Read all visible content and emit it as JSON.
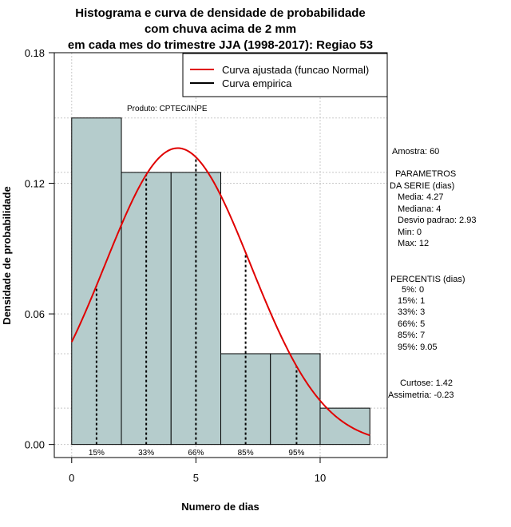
{
  "chart_data": {
    "type": "histogram",
    "title_lines": [
      "Histograma e curva de densidade de probabilidade",
      "com chuva acima de 2 mm",
      "em cada mes do trimestre JJA (1998-2017): Regiao 53"
    ],
    "xlabel": "Numero de dias",
    "ylabel": "Densidade de probabilidade",
    "xlim": [
      -0.7,
      12.7
    ],
    "ylim": [
      -0.006,
      0.18
    ],
    "x_ticks": [
      0,
      5,
      10
    ],
    "y_ticks": [
      "0.00",
      "0.06",
      "0.12",
      "0.18"
    ],
    "bins": [
      {
        "start": 0,
        "end": 2,
        "density": 0.15
      },
      {
        "start": 2,
        "end": 4,
        "density": 0.125
      },
      {
        "start": 4,
        "end": 6,
        "density": 0.125
      },
      {
        "start": 6,
        "end": 8,
        "density": 0.0417
      },
      {
        "start": 8,
        "end": 10,
        "density": 0.0417
      },
      {
        "start": 10,
        "end": 12,
        "density": 0.0167
      }
    ],
    "bar_color": "#b5cccc",
    "curve_color": "#e00000",
    "normal_fit": {
      "mean": 4.27,
      "sd": 2.93,
      "x_range": [
        0,
        12
      ]
    },
    "percentile_lines": [
      {
        "label": "15%",
        "x": 1
      },
      {
        "label": "33%",
        "x": 3
      },
      {
        "label": "66%",
        "x": 5
      },
      {
        "label": "85%",
        "x": 7
      },
      {
        "label": "95%",
        "x": 9.05
      }
    ],
    "legend": [
      {
        "label": "Curva ajustada (funcao Normal)",
        "color": "#e00000"
      },
      {
        "label": "Curva empirica",
        "color": "#000000"
      }
    ],
    "legend_position": "top-right",
    "product_note": "Produto: CPTEC/INPE",
    "stats": {
      "amostra": "Amostra: 60",
      "param_header_1": "PARAMETROS",
      "param_header_2": "DA SERIE (dias)",
      "media": "Media: 4.27",
      "mediana": "Mediana: 4",
      "desvio": "Desvio padrao: 2.93",
      "min": "Min: 0",
      "max": "Max: 12",
      "perc_header": "PERCENTIS (dias)",
      "p5": "5%: 0",
      "p15": "15%: 1",
      "p33": "33%: 3",
      "p66": "66%: 5",
      "p85": "85%: 7",
      "p95": "95%: 9.05",
      "curtose": "Curtose: 1.42",
      "assimetria": "Assimetria: -0.23"
    }
  }
}
